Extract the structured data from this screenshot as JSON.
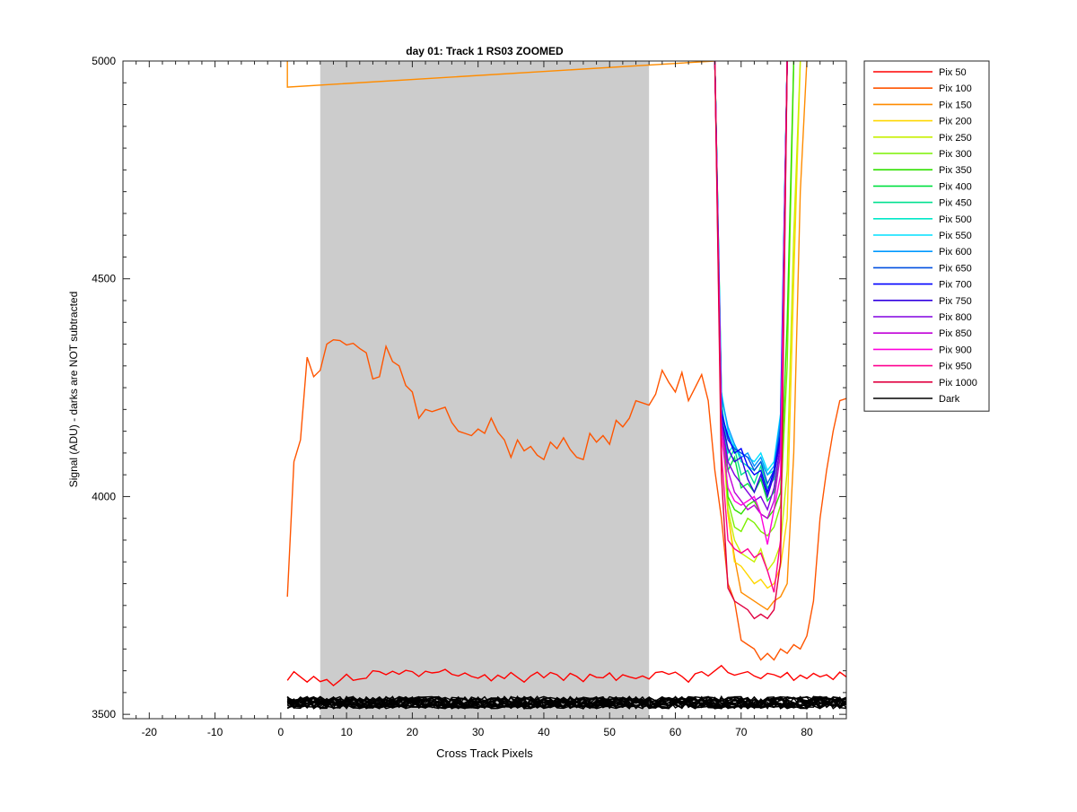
{
  "chart_data": {
    "type": "line",
    "title": "day 01: Track 1  RS03 ZOOMED",
    "xlabel": "Cross Track Pixels",
    "ylabel": "Signal (ADU) - darks are NOT subtracted",
    "xlim": [
      -24,
      86
    ],
    "ylim": [
      3490,
      5000
    ],
    "xticks": [
      -20,
      -10,
      0,
      10,
      20,
      30,
      40,
      50,
      60,
      70,
      80
    ],
    "yticks": [
      3500,
      4000,
      4500,
      5000
    ],
    "shaded_region": [
      6,
      56
    ],
    "legend_position": "outside-right",
    "series": [
      {
        "name": "Pix 50",
        "color": "#ff0000",
        "x": [
          1,
          2,
          3,
          4,
          5,
          6,
          7,
          8,
          9,
          10,
          11,
          12,
          13,
          14,
          15,
          16,
          17,
          18,
          19,
          20,
          21,
          22,
          23,
          24,
          25,
          26,
          27,
          28,
          29,
          30,
          31,
          32,
          33,
          34,
          35,
          36,
          37,
          38,
          39,
          40,
          41,
          42,
          43,
          44,
          45,
          46,
          47,
          48,
          49,
          50,
          51,
          52,
          53,
          54,
          55,
          56,
          57,
          58,
          59,
          60,
          61,
          62,
          63,
          64,
          65,
          66,
          67,
          68,
          69,
          70,
          71,
          72,
          73,
          74,
          75,
          76,
          77,
          78,
          79,
          80,
          81,
          82,
          83,
          84,
          85,
          86
        ],
        "y": [
          3578,
          3598,
          3586,
          3574,
          3587,
          3575,
          3580,
          3566,
          3578,
          3592,
          3578,
          3581,
          3583,
          3600,
          3598,
          3591,
          3599,
          3592,
          3601,
          3598,
          3587,
          3599,
          3595,
          3597,
          3603,
          3592,
          3588,
          3595,
          3587,
          3583,
          3591,
          3577,
          3590,
          3582,
          3596,
          3585,
          3574,
          3588,
          3597,
          3584,
          3596,
          3591,
          3578,
          3594,
          3587,
          3575,
          3592,
          3585,
          3584,
          3595,
          3578,
          3591,
          3586,
          3582,
          3588,
          3581,
          3596,
          3598,
          3592,
          3597,
          3587,
          3574,
          3593,
          3598,
          3588,
          3600,
          3612,
          3596,
          3590,
          3594,
          3598,
          3588,
          3582,
          3594,
          3591,
          3585,
          3596,
          3578,
          3590,
          3582,
          3594,
          3586,
          3591,
          3580,
          3597,
          3586
        ]
      },
      {
        "name": "Pix 100",
        "color": "#ff5500",
        "x": [
          1,
          2,
          3,
          4,
          5,
          6,
          7,
          8,
          9,
          10,
          11,
          12,
          13,
          14,
          15,
          16,
          17,
          18,
          19,
          20,
          21,
          22,
          23,
          24,
          25,
          26,
          27,
          28,
          29,
          30,
          31,
          32,
          33,
          34,
          35,
          36,
          37,
          38,
          39,
          40,
          41,
          42,
          43,
          44,
          45,
          46,
          47,
          48,
          49,
          50,
          51,
          52,
          53,
          54,
          55,
          56,
          57,
          58,
          59,
          60,
          61,
          62,
          63,
          64,
          65,
          66,
          67,
          68,
          69,
          70,
          71,
          72,
          73,
          74,
          75,
          76,
          77,
          78,
          79,
          80,
          81,
          82,
          83,
          84,
          85,
          86
        ],
        "y": [
          3770,
          4080,
          4130,
          4320,
          4275,
          4290,
          4350,
          4360,
          4358,
          4348,
          4352,
          4340,
          4330,
          4270,
          4275,
          4345,
          4310,
          4300,
          4255,
          4240,
          4180,
          4200,
          4195,
          4200,
          4205,
          4170,
          4150,
          4145,
          4140,
          4155,
          4145,
          4180,
          4148,
          4130,
          4090,
          4130,
          4105,
          4115,
          4095,
          4085,
          4125,
          4110,
          4135,
          4108,
          4090,
          4085,
          4145,
          4125,
          4140,
          4120,
          4175,
          4160,
          4180,
          4220,
          4215,
          4210,
          4235,
          4290,
          4262,
          4240,
          4285,
          4220,
          4250,
          4280,
          4220,
          4060,
          3950,
          3800,
          3760,
          3670,
          3660,
          3650,
          3625,
          3640,
          3625,
          3650,
          3640,
          3660,
          3650,
          3680,
          3760,
          3950,
          4060,
          4150,
          4220,
          4225
        ]
      },
      {
        "name": "Pix 150",
        "color": "#ff8c00",
        "x": [
          1,
          1,
          66,
          67,
          68,
          69,
          70,
          71,
          72,
          73,
          74,
          75,
          76,
          77,
          78,
          79,
          80
        ],
        "y": [
          5000,
          4940,
          5000,
          4230,
          3960,
          3860,
          3780,
          3770,
          3760,
          3750,
          3740,
          3760,
          3770,
          3800,
          4100,
          4700,
          5000
        ]
      },
      {
        "name": "Pix 200",
        "color": "#ffd700",
        "x": [
          66,
          67,
          68,
          69,
          70,
          71,
          72,
          73,
          74,
          75,
          76,
          77,
          78,
          79
        ],
        "y": [
          5000,
          4200,
          3960,
          3850,
          3840,
          3820,
          3800,
          3810,
          3790,
          3800,
          3840,
          3950,
          4500,
          5000
        ]
      },
      {
        "name": "Pix 250",
        "color": "#c8f000",
        "x": [
          66,
          67,
          68,
          69,
          70,
          71,
          72,
          73,
          74,
          75,
          76,
          77,
          78,
          79
        ],
        "y": [
          5000,
          4210,
          3970,
          3900,
          3870,
          3860,
          3850,
          3880,
          3830,
          3850,
          3890,
          4060,
          4600,
          5000
        ]
      },
      {
        "name": "Pix 300",
        "color": "#7cf000",
        "x": [
          66,
          67,
          68,
          69,
          70,
          71,
          72,
          73,
          74,
          75,
          76,
          77,
          78
        ],
        "y": [
          5000,
          4240,
          3990,
          3930,
          3920,
          3950,
          3940,
          3920,
          3910,
          3930,
          3980,
          4300,
          5000
        ]
      },
      {
        "name": "Pix 350",
        "color": "#30e000",
        "x": [
          66,
          67,
          68,
          69,
          70,
          71,
          72,
          73,
          74,
          75,
          76,
          77,
          78
        ],
        "y": [
          5000,
          4220,
          4000,
          3970,
          3960,
          3980,
          3990,
          3960,
          3950,
          3970,
          4010,
          4400,
          5000
        ]
      },
      {
        "name": "Pix 400",
        "color": "#00e040",
        "x": [
          66,
          67,
          68,
          69,
          70,
          71,
          72,
          73,
          74,
          75,
          76,
          77
        ],
        "y": [
          5000,
          4200,
          4060,
          4090,
          4020,
          4030,
          4010,
          4040,
          3990,
          4010,
          4120,
          5000
        ]
      },
      {
        "name": "Pix 450",
        "color": "#00e090",
        "x": [
          66,
          67,
          68,
          69,
          70,
          71,
          72,
          73,
          74,
          75,
          76,
          77
        ],
        "y": [
          5000,
          4210,
          4080,
          4110,
          4050,
          4060,
          4030,
          4070,
          4020,
          4040,
          4150,
          5000
        ]
      },
      {
        "name": "Pix 500",
        "color": "#00e8c8",
        "x": [
          66,
          67,
          68,
          69,
          70,
          71,
          72,
          73,
          74,
          75,
          76,
          77
        ],
        "y": [
          5000,
          4220,
          4100,
          4120,
          4080,
          4070,
          4060,
          4080,
          4050,
          4060,
          4170,
          5000
        ]
      },
      {
        "name": "Pix 550",
        "color": "#00e0ff",
        "x": [
          66,
          67,
          68,
          69,
          70,
          71,
          72,
          73,
          74,
          75,
          76,
          77
        ],
        "y": [
          5000,
          4240,
          4150,
          4110,
          4100,
          4090,
          4080,
          4100,
          4060,
          4080,
          4190,
          5000
        ]
      },
      {
        "name": "Pix 600",
        "color": "#0099ff",
        "x": [
          66,
          67,
          68,
          69,
          70,
          71,
          72,
          73,
          74,
          75,
          76,
          77
        ],
        "y": [
          5000,
          4230,
          4160,
          4120,
          4090,
          4100,
          4070,
          4090,
          4050,
          4070,
          4180,
          5000
        ]
      },
      {
        "name": "Pix 650",
        "color": "#0050e0",
        "x": [
          66,
          67,
          68,
          69,
          70,
          71,
          72,
          73,
          74,
          75,
          76,
          77
        ],
        "y": [
          5000,
          4200,
          4130,
          4110,
          4100,
          4090,
          4060,
          4080,
          4030,
          4060,
          4160,
          5000
        ]
      },
      {
        "name": "Pix 700",
        "color": "#0000ff",
        "x": [
          66,
          67,
          68,
          69,
          70,
          71,
          72,
          73,
          74,
          75,
          76,
          77
        ],
        "y": [
          5000,
          4190,
          4140,
          4100,
          4110,
          4070,
          4050,
          4060,
          4010,
          4060,
          4140,
          5000
        ]
      },
      {
        "name": "Pix 750",
        "color": "#3000e0",
        "x": [
          66,
          67,
          68,
          69,
          70,
          71,
          72,
          73,
          74,
          75,
          76,
          77
        ],
        "y": [
          5000,
          4180,
          4110,
          4080,
          4090,
          4040,
          4010,
          4050,
          4000,
          4050,
          4130,
          5000
        ]
      },
      {
        "name": "Pix 800",
        "color": "#8000e0",
        "x": [
          66,
          67,
          68,
          69,
          70,
          71,
          72,
          73,
          74,
          75,
          76,
          77
        ],
        "y": [
          5000,
          4170,
          4080,
          4050,
          4030,
          4010,
          3990,
          4000,
          3970,
          4020,
          4120,
          5000
        ]
      },
      {
        "name": "Pix 850",
        "color": "#c000d8",
        "x": [
          66,
          67,
          68,
          69,
          70,
          71,
          72,
          73,
          74,
          75,
          76,
          77
        ],
        "y": [
          5000,
          4160,
          4060,
          4010,
          3990,
          3970,
          3980,
          3960,
          3950,
          3990,
          4100,
          5000
        ]
      },
      {
        "name": "Pix 900",
        "color": "#ff00dd",
        "x": [
          66,
          67,
          68,
          69,
          70,
          71,
          72,
          73,
          74,
          75,
          76,
          77
        ],
        "y": [
          5000,
          4140,
          4020,
          3990,
          3980,
          3990,
          4000,
          3960,
          3890,
          3970,
          4050,
          5000
        ]
      },
      {
        "name": "Pix 950",
        "color": "#ff0090",
        "x": [
          66,
          67,
          68,
          69,
          70,
          71,
          72,
          73,
          74,
          75,
          76,
          77
        ],
        "y": [
          5000,
          4100,
          3900,
          3880,
          3870,
          3880,
          3860,
          3870,
          3830,
          3780,
          3900,
          5000
        ]
      },
      {
        "name": "Pix 1000",
        "color": "#e00040",
        "x": [
          66,
          67,
          68,
          69,
          70,
          71,
          72,
          73,
          74,
          75,
          76,
          77
        ],
        "y": [
          5000,
          4050,
          3790,
          3760,
          3750,
          3740,
          3720,
          3730,
          3720,
          3740,
          3850,
          5000
        ]
      }
    ],
    "dark": {
      "name": "Dark",
      "color": "#000000",
      "x_start": 1,
      "x_end": 86,
      "level": 3527,
      "spread": 14,
      "line_count": 19
    }
  }
}
